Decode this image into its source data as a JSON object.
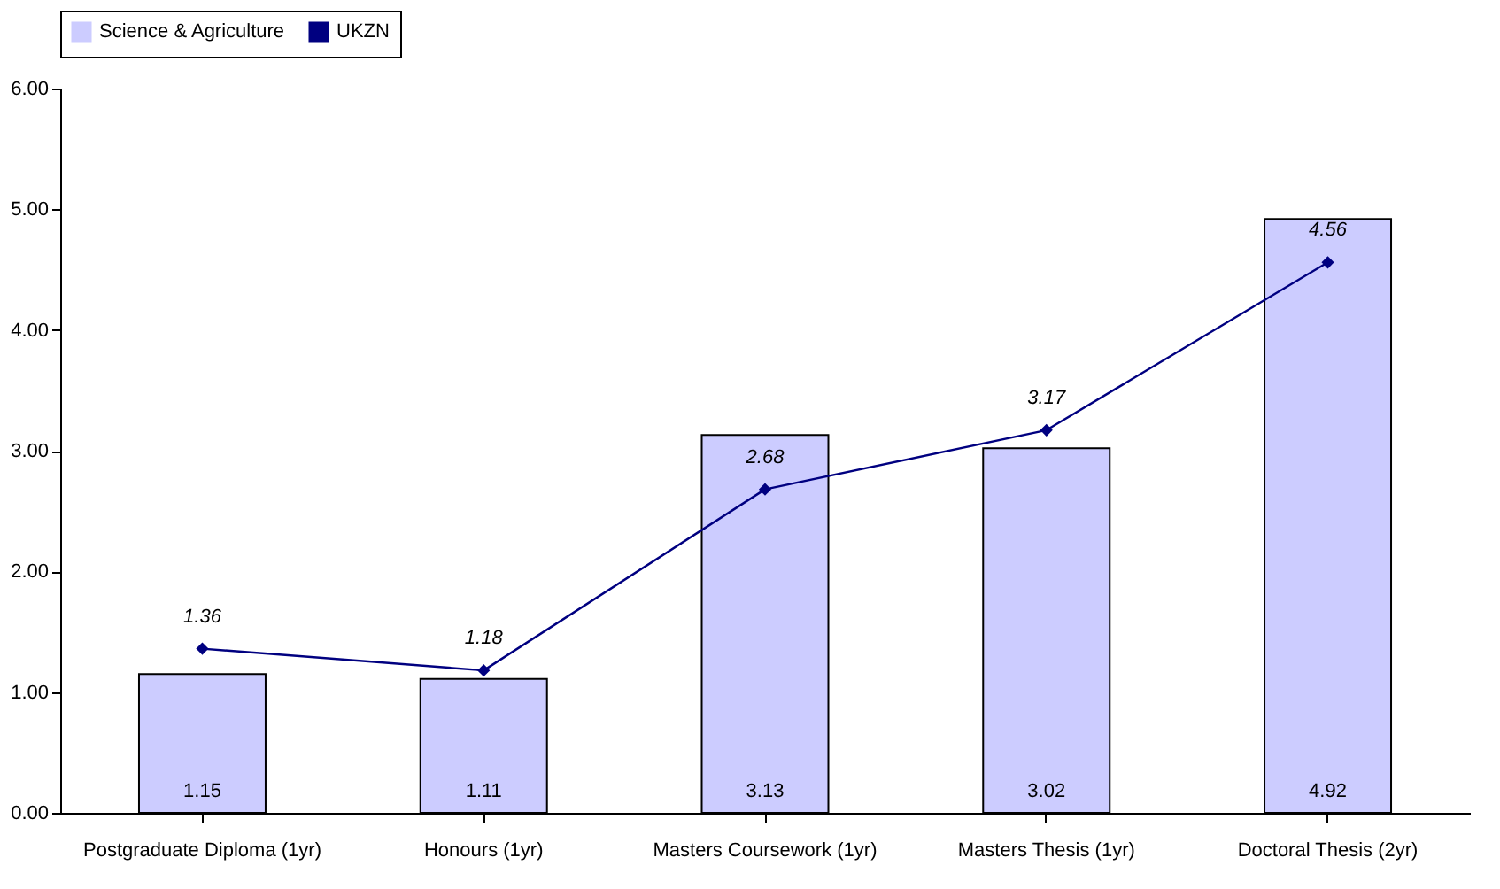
{
  "chart_data": {
    "type": "bar",
    "categories": [
      "Postgraduate Diploma (1yr)",
      "Honours (1yr)",
      "Masters Coursework (1yr)",
      "Masters Thesis (1yr)",
      "Doctoral Thesis (2yr)"
    ],
    "series": [
      {
        "name": "Science & Agriculture",
        "color": "#ccccff",
        "values": [
          1.15,
          1.11,
          3.13,
          3.02,
          4.92
        ]
      },
      {
        "name": "UKZN",
        "type": "line",
        "color": "#000080",
        "values": [
          1.36,
          1.18,
          2.68,
          3.17,
          4.56
        ]
      }
    ],
    "ylim": [
      0,
      6
    ],
    "yticks": [
      {
        "value": 0,
        "label": "0.00"
      },
      {
        "value": 1,
        "label": "1.00"
      },
      {
        "value": 2,
        "label": "2.00"
      },
      {
        "value": 3,
        "label": "3.00"
      },
      {
        "value": 4,
        "label": "4.00"
      },
      {
        "value": 5,
        "label": "5.00"
      },
      {
        "value": 6,
        "label": "6.00"
      }
    ],
    "grid": false,
    "legend": "top",
    "marker": "diamond",
    "line_style": "solid",
    "data_labels": true
  }
}
